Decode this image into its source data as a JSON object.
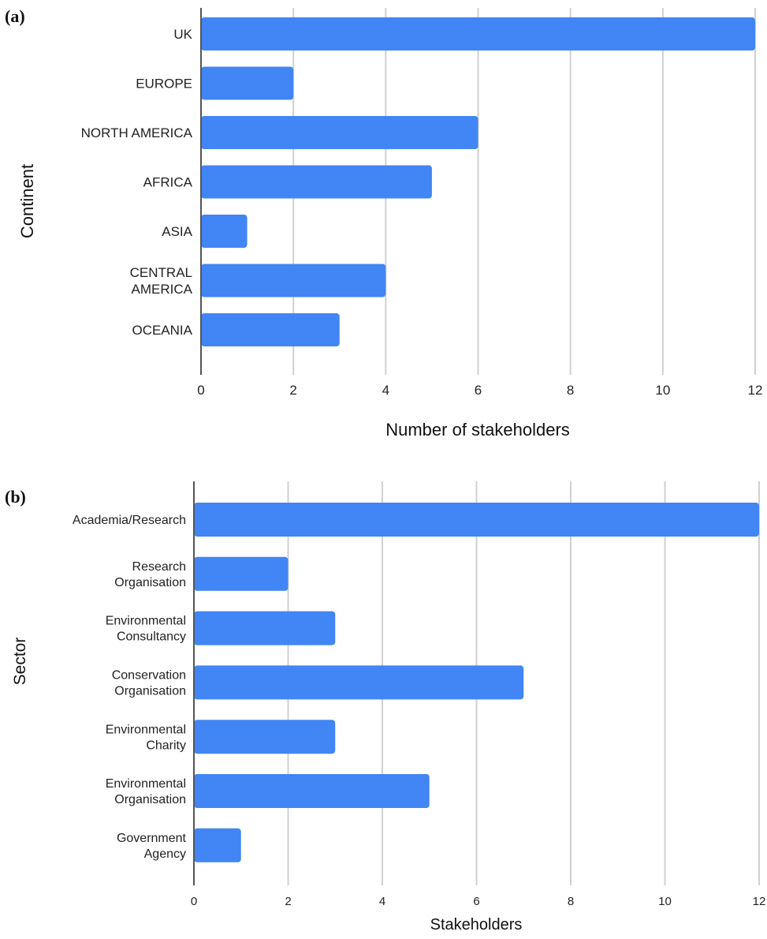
{
  "chart_data": [
    {
      "panel_label": "(a)",
      "type": "bar",
      "orientation": "horizontal",
      "categories": [
        "UK",
        "EUROPE",
        "NORTH AMERICA",
        "AFRICA",
        "ASIA",
        "CENTRAL AMERICA",
        "OCEANIA"
      ],
      "values": [
        12,
        2,
        6,
        5,
        1,
        4,
        3
      ],
      "xlabel": "Number of stakeholders",
      "ylabel": "Continent",
      "xlim": [
        0,
        12
      ],
      "xticks": [
        "0",
        "2",
        "4",
        "6",
        "8",
        "10",
        "12"
      ],
      "grid": "vertical",
      "bar_color": "#4285f4"
    },
    {
      "panel_label": "(b)",
      "type": "bar",
      "orientation": "horizontal",
      "categories": [
        "Academia/Research",
        "Research Organisation",
        "Environmental Consultancy",
        "Conservation Organisation",
        "Environmental Charity",
        "Environmental Organisation",
        "Government Agency"
      ],
      "values": [
        12,
        2,
        3,
        7,
        3,
        5,
        1
      ],
      "xlabel": "Stakeholders",
      "ylabel": "Sector",
      "xlim": [
        0,
        12
      ],
      "xticks": [
        "0",
        "2",
        "4",
        "6",
        "8",
        "10",
        "12"
      ],
      "grid": "vertical",
      "bar_color": "#4285f4"
    }
  ]
}
